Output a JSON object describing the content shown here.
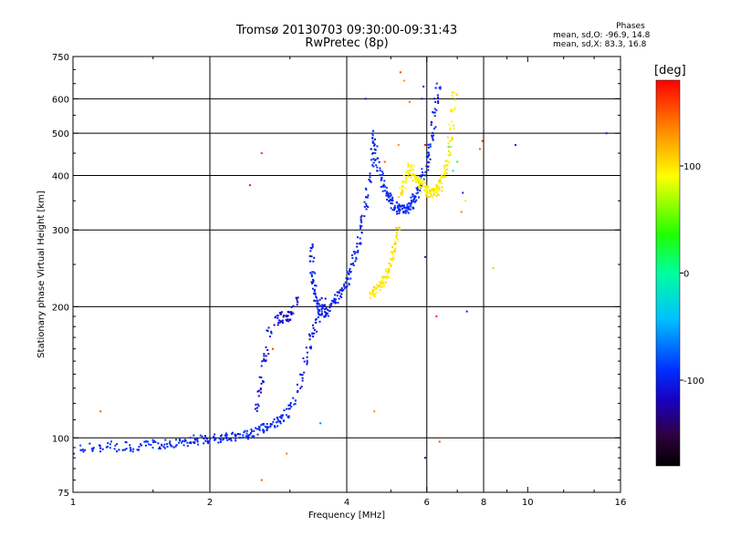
{
  "header": {
    "title_line1": "Tromsø 20130703 09:30:00-09:31:43",
    "title_line2": "RwPretec (8p)"
  },
  "phases_box": {
    "heading": "Phases",
    "line_o": "mean, sd,O: -96.9, 14.8",
    "line_x": "mean, sd,X: 83.3, 16.8"
  },
  "colorbar": {
    "unit_label": "[deg]",
    "ticks": [
      {
        "label": "100",
        "value": 100
      },
      {
        "label": "0",
        "value": 0
      },
      {
        "label": "-100",
        "value": -100
      }
    ],
    "range": [
      -180,
      180
    ]
  },
  "chart_data": {
    "type": "scatter",
    "xlabel": "Frequency [MHz]",
    "ylabel": "Stationary phase Virtual Height [km]",
    "xscale": "log",
    "yscale": "log",
    "xlim": [
      1,
      16
    ],
    "ylim": [
      75,
      750
    ],
    "grid": true,
    "x_ticks": [
      {
        "label": "1",
        "value": 1
      },
      {
        "label": "2",
        "value": 2
      },
      {
        "label": "4",
        "value": 4
      },
      {
        "label": "6",
        "value": 6
      },
      {
        "label": "8",
        "value": 8
      },
      {
        "label": "10",
        "value": 10
      },
      {
        "label": "16",
        "value": 16
      }
    ],
    "y_ticks": [
      {
        "label": "75",
        "value": 75
      },
      {
        "label": "100",
        "value": 100
      },
      {
        "label": "200",
        "value": 200
      },
      {
        "label": "300",
        "value": 300
      },
      {
        "label": "400",
        "value": 400
      },
      {
        "label": "500",
        "value": 500
      },
      {
        "label": "600",
        "value": 600
      },
      {
        "label": "750",
        "value": 750
      }
    ],
    "x_gridlines": [
      2,
      4,
      6,
      8
    ],
    "y_gridlines": [
      100,
      200,
      300,
      400,
      500,
      600
    ],
    "traces": [
      {
        "mode": "O",
        "phase": -95,
        "points": [
          [
            1.0,
            94
          ],
          [
            1.05,
            94
          ],
          [
            1.1,
            95
          ],
          [
            1.15,
            95
          ],
          [
            1.2,
            96
          ],
          [
            1.25,
            95
          ],
          [
            1.3,
            96
          ],
          [
            1.35,
            95
          ],
          [
            1.4,
            96
          ],
          [
            1.45,
            96
          ],
          [
            1.5,
            97
          ],
          [
            1.55,
            96
          ],
          [
            1.6,
            97
          ],
          [
            1.65,
            97
          ],
          [
            1.7,
            97
          ],
          [
            1.75,
            98
          ],
          [
            1.8,
            98
          ],
          [
            1.85,
            99
          ],
          [
            1.9,
            99
          ],
          [
            1.95,
            99
          ],
          [
            2.0,
            99
          ],
          [
            2.05,
            100
          ],
          [
            2.1,
            100
          ],
          [
            2.15,
            100
          ],
          [
            2.2,
            100
          ],
          [
            2.25,
            101
          ],
          [
            2.3,
            101
          ],
          [
            2.35,
            101
          ],
          [
            2.4,
            102
          ],
          [
            2.45,
            102
          ],
          [
            2.5,
            103
          ],
          [
            2.55,
            104
          ],
          [
            2.6,
            105
          ],
          [
            2.65,
            106
          ],
          [
            2.7,
            107
          ],
          [
            2.75,
            108
          ],
          [
            2.8,
            109
          ],
          [
            2.85,
            110
          ],
          [
            2.9,
            111
          ],
          [
            2.95,
            114
          ],
          [
            3.0,
            118
          ],
          [
            3.05,
            122
          ]
        ]
      },
      {
        "mode": "O",
        "phase": -110,
        "points": [
          [
            2.55,
            117
          ],
          [
            2.58,
            127
          ],
          [
            2.6,
            135
          ],
          [
            2.63,
            148
          ],
          [
            2.66,
            158
          ],
          [
            2.7,
            175
          ],
          [
            2.8,
            186
          ],
          [
            2.85,
            190
          ],
          [
            2.88,
            188
          ],
          [
            2.92,
            186
          ],
          [
            2.95,
            188
          ],
          [
            3.0,
            191
          ],
          [
            3.05,
            196
          ],
          [
            3.1,
            205
          ]
        ]
      },
      {
        "mode": "O",
        "phase": -105,
        "points": [
          [
            3.15,
            130
          ],
          [
            3.2,
            138
          ],
          [
            3.25,
            150
          ],
          [
            3.3,
            160
          ],
          [
            3.35,
            170
          ],
          [
            3.4,
            178
          ],
          [
            3.45,
            188
          ],
          [
            3.5,
            196
          ],
          [
            3.55,
            205
          ]
        ]
      },
      {
        "mode": "O",
        "phase": -100,
        "points": [
          [
            3.35,
            275
          ],
          [
            3.36,
            255
          ],
          [
            3.37,
            240
          ],
          [
            3.38,
            228
          ],
          [
            3.4,
            218
          ],
          [
            3.42,
            210
          ],
          [
            3.45,
            203
          ],
          [
            3.48,
            198
          ],
          [
            3.52,
            195
          ],
          [
            3.56,
            194
          ],
          [
            3.6,
            195
          ],
          [
            3.65,
            197
          ],
          [
            3.7,
            200
          ],
          [
            3.75,
            204
          ],
          [
            3.8,
            209
          ],
          [
            3.85,
            213
          ],
          [
            3.9,
            217
          ],
          [
            3.95,
            222
          ],
          [
            4.0,
            228
          ],
          [
            4.05,
            236
          ],
          [
            4.1,
            245
          ],
          [
            4.15,
            257
          ],
          [
            4.2,
            270
          ],
          [
            4.25,
            285
          ],
          [
            4.3,
            300
          ],
          [
            4.35,
            320
          ],
          [
            4.4,
            342
          ],
          [
            4.45,
            365
          ],
          [
            4.5,
            395
          ],
          [
            4.55,
            430
          ],
          [
            4.58,
            460
          ],
          [
            4.6,
            495
          ]
        ]
      },
      {
        "mode": "O",
        "phase": -95,
        "points": [
          [
            4.62,
            470
          ],
          [
            4.66,
            440
          ],
          [
            4.7,
            420
          ],
          [
            4.75,
            400
          ],
          [
            4.8,
            385
          ],
          [
            4.85,
            372
          ],
          [
            4.9,
            362
          ],
          [
            4.95,
            355
          ],
          [
            5.0,
            350
          ],
          [
            5.05,
            345
          ],
          [
            5.1,
            340
          ],
          [
            5.15,
            337
          ],
          [
            5.2,
            335
          ],
          [
            5.25,
            333
          ],
          [
            5.3,
            333
          ],
          [
            5.35,
            333
          ],
          [
            5.4,
            334
          ],
          [
            5.45,
            336
          ],
          [
            5.5,
            339
          ],
          [
            5.55,
            343
          ],
          [
            5.6,
            348
          ],
          [
            5.65,
            354
          ],
          [
            5.7,
            361
          ],
          [
            5.75,
            370
          ],
          [
            5.8,
            380
          ],
          [
            5.85,
            392
          ],
          [
            5.9,
            405
          ]
        ]
      },
      {
        "mode": "O",
        "phase": -100,
        "points": [
          [
            6.0,
            420
          ],
          [
            6.05,
            440
          ],
          [
            6.1,
            462
          ],
          [
            6.15,
            490
          ],
          [
            6.2,
            520
          ],
          [
            6.25,
            560
          ],
          [
            6.3,
            600
          ],
          [
            6.35,
            640
          ]
        ]
      },
      {
        "mode": "X",
        "phase": 100,
        "points": [
          [
            4.55,
            215
          ],
          [
            4.6,
            216
          ],
          [
            4.65,
            218
          ],
          [
            4.7,
            220
          ],
          [
            4.75,
            223
          ],
          [
            4.8,
            227
          ],
          [
            4.85,
            232
          ],
          [
            4.9,
            238
          ],
          [
            4.95,
            245
          ],
          [
            5.0,
            253
          ],
          [
            5.05,
            262
          ],
          [
            5.1,
            272
          ],
          [
            5.15,
            285
          ],
          [
            5.2,
            298
          ]
        ]
      },
      {
        "mode": "X",
        "phase": 95,
        "points": [
          [
            5.25,
            360
          ],
          [
            5.3,
            370
          ],
          [
            5.35,
            382
          ],
          [
            5.4,
            395
          ],
          [
            5.45,
            408
          ],
          [
            5.5,
            418
          ],
          [
            5.55,
            412
          ],
          [
            5.6,
            405
          ],
          [
            5.65,
            398
          ],
          [
            5.7,
            393
          ],
          [
            5.75,
            388
          ],
          [
            5.8,
            384
          ],
          [
            5.85,
            380
          ],
          [
            5.9,
            376
          ],
          [
            5.95,
            372
          ],
          [
            6.0,
            369
          ],
          [
            6.05,
            367
          ],
          [
            6.1,
            366
          ],
          [
            6.15,
            365
          ],
          [
            6.2,
            365
          ],
          [
            6.25,
            366
          ],
          [
            6.3,
            368
          ],
          [
            6.35,
            372
          ],
          [
            6.4,
            377
          ],
          [
            6.45,
            383
          ],
          [
            6.5,
            392
          ],
          [
            6.55,
            402
          ],
          [
            6.6,
            415
          ],
          [
            6.65,
            432
          ],
          [
            6.7,
            455
          ],
          [
            6.75,
            485
          ],
          [
            6.8,
            520
          ],
          [
            6.85,
            560
          ],
          [
            6.9,
            610
          ]
        ]
      }
    ],
    "scatter_points": [
      {
        "x": 1.15,
        "y": 115,
        "phase": 150
      },
      {
        "x": 2.45,
        "y": 380,
        "phase": 175
      },
      {
        "x": 2.6,
        "y": 450,
        "phase": 165
      },
      {
        "x": 2.6,
        "y": 80,
        "phase": 150
      },
      {
        "x": 2.95,
        "y": 92,
        "phase": 140
      },
      {
        "x": 2.75,
        "y": 160,
        "phase": 160
      },
      {
        "x": 3.5,
        "y": 108,
        "phase": -60
      },
      {
        "x": 4.4,
        "y": 600,
        "phase": -100
      },
      {
        "x": 4.6,
        "y": 115,
        "phase": 130
      },
      {
        "x": 4.85,
        "y": 430,
        "phase": 150
      },
      {
        "x": 5.2,
        "y": 470,
        "phase": 130
      },
      {
        "x": 5.25,
        "y": 690,
        "phase": 160
      },
      {
        "x": 5.35,
        "y": 660,
        "phase": 130
      },
      {
        "x": 5.5,
        "y": 590,
        "phase": 145
      },
      {
        "x": 5.85,
        "y": 600,
        "phase": -100
      },
      {
        "x": 5.9,
        "y": 640,
        "phase": -110
      },
      {
        "x": 5.95,
        "y": 470,
        "phase": 170
      },
      {
        "x": 5.95,
        "y": 260,
        "phase": -100
      },
      {
        "x": 5.95,
        "y": 90,
        "phase": -110
      },
      {
        "x": 6.3,
        "y": 190,
        "phase": 170
      },
      {
        "x": 6.4,
        "y": 98,
        "phase": 155
      },
      {
        "x": 6.7,
        "y": 465,
        "phase": 20
      },
      {
        "x": 6.85,
        "y": 410,
        "phase": -10
      },
      {
        "x": 7.0,
        "y": 430,
        "phase": 20
      },
      {
        "x": 7.15,
        "y": 330,
        "phase": 140
      },
      {
        "x": 7.2,
        "y": 365,
        "phase": -100
      },
      {
        "x": 7.3,
        "y": 350,
        "phase": 100
      },
      {
        "x": 7.35,
        "y": 195,
        "phase": -100
      },
      {
        "x": 7.85,
        "y": 460,
        "phase": 150
      },
      {
        "x": 7.95,
        "y": 480,
        "phase": 170
      },
      {
        "x": 8.4,
        "y": 245,
        "phase": 60
      },
      {
        "x": 9.4,
        "y": 470,
        "phase": -100
      },
      {
        "x": 14.9,
        "y": 500,
        "phase": -100
      }
    ]
  }
}
